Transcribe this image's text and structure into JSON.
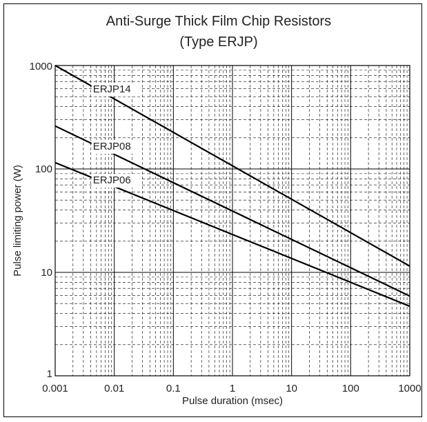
{
  "chart_data": {
    "type": "line",
    "title": "Anti-Surge Thick Film Chip Resistors",
    "subtitle": "(Type ERJP)",
    "xlabel": "Pulse duration (msec)",
    "ylabel": "Pulse limiting power (W)",
    "x_scale": "log",
    "y_scale": "log",
    "xlim": [
      0.001,
      1000
    ],
    "ylim": [
      1,
      1000
    ],
    "x_tick_labels": [
      "0.001",
      "0.01",
      "0.1",
      "1",
      "10",
      "100",
      "1000"
    ],
    "y_tick_labels": [
      "1",
      "10",
      "100",
      "1000"
    ],
    "grid": true,
    "legend": "none",
    "series": [
      {
        "name": "ERJP14",
        "x": [
          0.001,
          1000
        ],
        "y": [
          1000,
          11.5
        ],
        "color": "#000000"
      },
      {
        "name": "ERJP08",
        "x": [
          0.001,
          1000
        ],
        "y": [
          260,
          5.9
        ],
        "color": "#000000"
      },
      {
        "name": "ERJP06",
        "x": [
          0.001,
          1000
        ],
        "y": [
          115,
          4.7
        ],
        "color": "#000000"
      }
    ]
  }
}
